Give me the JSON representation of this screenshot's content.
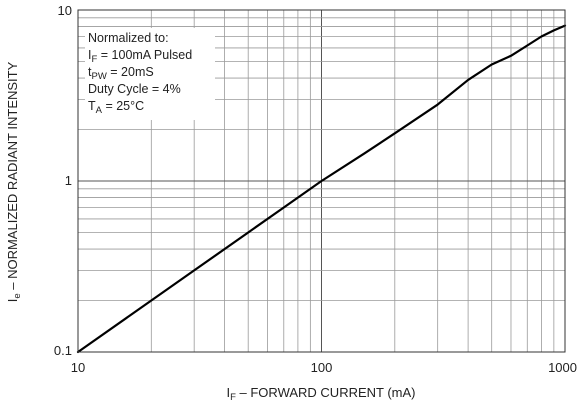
{
  "chart_data": {
    "type": "line",
    "xscale": "log",
    "yscale": "log",
    "xlim": [
      10,
      1000
    ],
    "ylim": [
      0.1,
      10
    ],
    "grid": true,
    "x_ticks": [
      "10",
      "100",
      "1000"
    ],
    "y_ticks": [
      "0.1",
      "1",
      "10"
    ],
    "xlabel": {
      "main": "I",
      "sub": "F",
      "rest": " – FORWARD CURRENT (mA)"
    },
    "ylabel": {
      "main": "I",
      "sub": "e",
      "rest": " – NORMALIZED RADIANT INTENSITY"
    },
    "annotation": [
      {
        "main": "Normalized to:",
        "sub": "",
        "rest": ""
      },
      {
        "main": "I",
        "sub": "F",
        "rest": " = 100mA Pulsed"
      },
      {
        "main": "t",
        "sub": "PW",
        "rest": " = 20mS"
      },
      {
        "main": "Duty Cycle = 4%",
        "sub": "",
        "rest": ""
      },
      {
        "main": "T",
        "sub": "A",
        "rest": " = 25°C"
      }
    ],
    "series": [
      {
        "x": [
          10,
          20,
          30,
          50,
          70,
          100,
          150,
          200,
          300,
          400,
          500,
          600,
          700,
          800,
          900,
          1000
        ],
        "y": [
          0.1,
          0.2,
          0.3,
          0.5,
          0.7,
          1.0,
          1.45,
          1.9,
          2.8,
          3.9,
          4.8,
          5.4,
          6.2,
          7.0,
          7.6,
          8.1
        ]
      }
    ],
    "colors": {
      "curve": "#000000",
      "grid": "#9a9a9a",
      "frame": "#333333",
      "background": "#ffffff"
    }
  }
}
